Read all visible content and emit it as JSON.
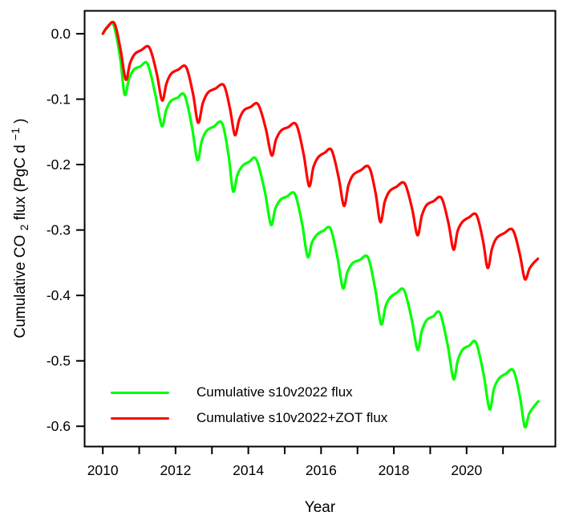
{
  "chart_data": {
    "type": "line",
    "title": "",
    "xlabel": "Year",
    "ylabel": "Cumulative CO2 flux (PgC d-1)",
    "ylabel_parts": {
      "pre": "Cumulative CO",
      "sub": "2",
      "mid": " flux (PgC d",
      "sup": "−1",
      "post": ")"
    },
    "grid": false,
    "legend_position": "bottom-left-inside",
    "xlim": [
      2009.5,
      2022.44
    ],
    "ylim": [
      -0.631,
      0.035
    ],
    "x_ticks": [
      2010,
      2011,
      2012,
      2013,
      2014,
      2015,
      2016,
      2017,
      2018,
      2019,
      2020,
      2021
    ],
    "x_tick_labels": [
      "2010",
      "",
      "2012",
      "",
      "2014",
      "",
      "2016",
      "",
      "2018",
      "",
      "2020",
      ""
    ],
    "y_ticks": [
      0.0,
      -0.1,
      -0.2,
      -0.3,
      -0.4,
      -0.5,
      -0.6
    ],
    "y_tick_labels": [
      "0.0",
      "-0.1",
      "-0.2",
      "-0.3",
      "-0.4",
      "-0.5",
      "-0.6"
    ],
    "axis_color": "#000000",
    "series": [
      {
        "name": "Cumulative s10v2022 flux",
        "color": "#00FF00",
        "points": [
          [
            2010.0,
            0.0
          ],
          [
            2010.12,
            0.009
          ],
          [
            2010.3,
            0.013
          ],
          [
            2010.48,
            -0.038
          ],
          [
            2010.6,
            -0.093
          ],
          [
            2010.72,
            -0.069
          ],
          [
            2010.85,
            -0.055
          ],
          [
            2011.03,
            -0.05
          ],
          [
            2011.23,
            -0.046
          ],
          [
            2011.44,
            -0.092
          ],
          [
            2011.62,
            -0.141
          ],
          [
            2011.74,
            -0.117
          ],
          [
            2011.87,
            -0.103
          ],
          [
            2012.05,
            -0.098
          ],
          [
            2012.25,
            -0.094
          ],
          [
            2012.45,
            -0.142
          ],
          [
            2012.6,
            -0.193
          ],
          [
            2012.72,
            -0.164
          ],
          [
            2012.86,
            -0.148
          ],
          [
            2013.05,
            -0.142
          ],
          [
            2013.28,
            -0.137
          ],
          [
            2013.46,
            -0.187
          ],
          [
            2013.58,
            -0.241
          ],
          [
            2013.7,
            -0.216
          ],
          [
            2013.84,
            -0.202
          ],
          [
            2014.02,
            -0.196
          ],
          [
            2014.22,
            -0.192
          ],
          [
            2014.45,
            -0.24
          ],
          [
            2014.62,
            -0.292
          ],
          [
            2014.74,
            -0.268
          ],
          [
            2014.88,
            -0.254
          ],
          [
            2015.06,
            -0.249
          ],
          [
            2015.28,
            -0.245
          ],
          [
            2015.48,
            -0.291
          ],
          [
            2015.63,
            -0.341
          ],
          [
            2015.75,
            -0.319
          ],
          [
            2015.89,
            -0.307
          ],
          [
            2016.07,
            -0.301
          ],
          [
            2016.26,
            -0.298
          ],
          [
            2016.45,
            -0.342
          ],
          [
            2016.6,
            -0.389
          ],
          [
            2016.72,
            -0.365
          ],
          [
            2016.86,
            -0.351
          ],
          [
            2017.06,
            -0.346
          ],
          [
            2017.29,
            -0.342
          ],
          [
            2017.49,
            -0.391
          ],
          [
            2017.65,
            -0.444
          ],
          [
            2017.77,
            -0.417
          ],
          [
            2017.9,
            -0.403
          ],
          [
            2018.08,
            -0.396
          ],
          [
            2018.28,
            -0.392
          ],
          [
            2018.49,
            -0.436
          ],
          [
            2018.65,
            -0.483
          ],
          [
            2018.77,
            -0.454
          ],
          [
            2018.9,
            -0.438
          ],
          [
            2019.08,
            -0.432
          ],
          [
            2019.27,
            -0.427
          ],
          [
            2019.48,
            -0.476
          ],
          [
            2019.64,
            -0.528
          ],
          [
            2019.76,
            -0.499
          ],
          [
            2019.89,
            -0.483
          ],
          [
            2020.07,
            -0.477
          ],
          [
            2020.26,
            -0.472
          ],
          [
            2020.47,
            -0.521
          ],
          [
            2020.63,
            -0.574
          ],
          [
            2020.75,
            -0.543
          ],
          [
            2020.89,
            -0.527
          ],
          [
            2021.07,
            -0.52
          ],
          [
            2021.29,
            -0.515
          ],
          [
            2021.47,
            -0.556
          ],
          [
            2021.6,
            -0.601
          ],
          [
            2021.72,
            -0.581
          ],
          [
            2021.85,
            -0.57
          ],
          [
            2021.97,
            -0.562
          ]
        ]
      },
      {
        "name": "Cumulative s10v2022+ZOT flux",
        "color": "#FF0000",
        "points": [
          [
            2010.0,
            0.0
          ],
          [
            2010.12,
            0.01
          ],
          [
            2010.32,
            0.016
          ],
          [
            2010.49,
            -0.025
          ],
          [
            2010.63,
            -0.07
          ],
          [
            2010.75,
            -0.045
          ],
          [
            2010.88,
            -0.031
          ],
          [
            2011.06,
            -0.025
          ],
          [
            2011.28,
            -0.021
          ],
          [
            2011.48,
            -0.06
          ],
          [
            2011.63,
            -0.102
          ],
          [
            2011.75,
            -0.076
          ],
          [
            2011.88,
            -0.061
          ],
          [
            2012.07,
            -0.055
          ],
          [
            2012.29,
            -0.051
          ],
          [
            2012.48,
            -0.092
          ],
          [
            2012.62,
            -0.136
          ],
          [
            2012.75,
            -0.106
          ],
          [
            2012.89,
            -0.09
          ],
          [
            2013.09,
            -0.084
          ],
          [
            2013.33,
            -0.079
          ],
          [
            2013.5,
            -0.116
          ],
          [
            2013.63,
            -0.155
          ],
          [
            2013.75,
            -0.131
          ],
          [
            2013.88,
            -0.117
          ],
          [
            2014.06,
            -0.112
          ],
          [
            2014.27,
            -0.108
          ],
          [
            2014.48,
            -0.145
          ],
          [
            2014.64,
            -0.186
          ],
          [
            2014.76,
            -0.162
          ],
          [
            2014.9,
            -0.148
          ],
          [
            2015.09,
            -0.143
          ],
          [
            2015.32,
            -0.139
          ],
          [
            2015.52,
            -0.184
          ],
          [
            2015.67,
            -0.233
          ],
          [
            2015.79,
            -0.204
          ],
          [
            2015.92,
            -0.189
          ],
          [
            2016.1,
            -0.182
          ],
          [
            2016.29,
            -0.178
          ],
          [
            2016.48,
            -0.219
          ],
          [
            2016.63,
            -0.263
          ],
          [
            2016.75,
            -0.232
          ],
          [
            2016.88,
            -0.216
          ],
          [
            2017.08,
            -0.209
          ],
          [
            2017.32,
            -0.204
          ],
          [
            2017.5,
            -0.244
          ],
          [
            2017.63,
            -0.288
          ],
          [
            2017.75,
            -0.257
          ],
          [
            2017.88,
            -0.241
          ],
          [
            2018.07,
            -0.234
          ],
          [
            2018.3,
            -0.229
          ],
          [
            2018.5,
            -0.267
          ],
          [
            2018.65,
            -0.308
          ],
          [
            2018.77,
            -0.278
          ],
          [
            2018.9,
            -0.262
          ],
          [
            2019.09,
            -0.256
          ],
          [
            2019.31,
            -0.251
          ],
          [
            2019.5,
            -0.289
          ],
          [
            2019.64,
            -0.33
          ],
          [
            2019.75,
            -0.302
          ],
          [
            2019.88,
            -0.288
          ],
          [
            2020.06,
            -0.281
          ],
          [
            2020.27,
            -0.277
          ],
          [
            2020.45,
            -0.316
          ],
          [
            2020.58,
            -0.358
          ],
          [
            2020.7,
            -0.328
          ],
          [
            2020.83,
            -0.312
          ],
          [
            2021.03,
            -0.305
          ],
          [
            2021.27,
            -0.3
          ],
          [
            2021.46,
            -0.336
          ],
          [
            2021.6,
            -0.375
          ],
          [
            2021.73,
            -0.359
          ],
          [
            2021.85,
            -0.35
          ],
          [
            2021.96,
            -0.344
          ]
        ]
      }
    ]
  }
}
